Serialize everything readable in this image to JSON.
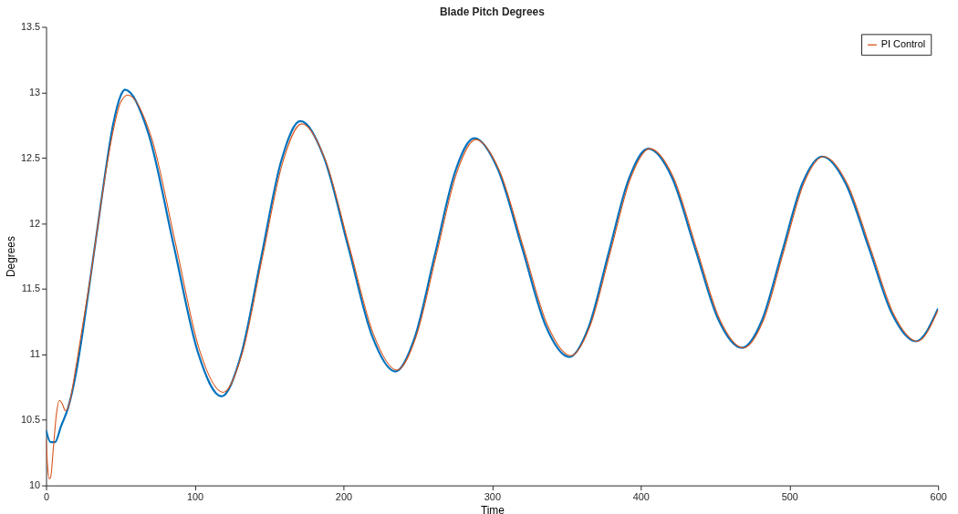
{
  "chart_data": {
    "type": "line",
    "title": "Blade Pitch Degrees",
    "xlabel": "Time",
    "ylabel": "Degrees",
    "xlim": [
      0,
      600
    ],
    "xticks": [
      0,
      100,
      200,
      300,
      400,
      500,
      600
    ],
    "ylim": [
      10,
      13.5
    ],
    "yticks": [
      10,
      10.5,
      11,
      11.5,
      12,
      12.5,
      13,
      13.5
    ],
    "grid": false,
    "legend": "top right",
    "line_style": "solid",
    "marker": "none",
    "series": [
      {
        "color": "#0072bd",
        "x": [
          0,
          3,
          6,
          10,
          15,
          20,
          25,
          30,
          35,
          40,
          45,
          50,
          53,
          69,
          85.5,
          102,
          118,
          131,
          144.5,
          158,
          171,
          187,
          203,
          219,
          235,
          248,
          261.5,
          275,
          288,
          304,
          320,
          336,
          352,
          365,
          378.5,
          392,
          405,
          421,
          436.5,
          452,
          468,
          481.5,
          495,
          508.5,
          522,
          538,
          553.5,
          569,
          585,
          600
        ],
        "values": [
          10.42,
          10.33,
          10.33,
          10.45,
          10.6,
          10.85,
          11.2,
          11.6,
          12.0,
          12.4,
          12.75,
          12.97,
          13.02,
          12.68,
          11.85,
          11.02,
          10.68,
          10.99,
          11.73,
          12.47,
          12.78,
          12.5,
          11.83,
          11.15,
          10.87,
          11.13,
          11.76,
          12.39,
          12.65,
          12.41,
          11.82,
          11.22,
          10.98,
          11.21,
          11.78,
          12.34,
          12.57,
          12.35,
          11.81,
          11.27,
          11.05,
          11.26,
          11.78,
          12.3,
          12.51,
          12.3,
          11.81,
          11.31,
          11.1,
          11.35
        ]
      },
      {
        "name": "PI Control",
        "color": "#d95319",
        "x": [
          0,
          1,
          2,
          3,
          5,
          7,
          9,
          11,
          13,
          15,
          20,
          25,
          30,
          35,
          40,
          45,
          50,
          55,
          71,
          87,
          103,
          119,
          132,
          145.5,
          159,
          172,
          188,
          204,
          220,
          236,
          249,
          262.5,
          276,
          289,
          305,
          321,
          337,
          353,
          366,
          379.5,
          393,
          406,
          422,
          437.5,
          453,
          469,
          482.5,
          496,
          509.5,
          523,
          539,
          554.5,
          570,
          586,
          600
        ],
        "values": [
          10.35,
          10.15,
          10.05,
          10.06,
          10.3,
          10.55,
          10.65,
          10.62,
          10.57,
          10.6,
          10.9,
          11.25,
          11.6,
          12.0,
          12.38,
          12.7,
          12.92,
          12.98,
          12.65,
          11.85,
          11.04,
          10.71,
          11.01,
          11.74,
          12.46,
          12.76,
          12.48,
          11.82,
          11.16,
          10.88,
          11.14,
          11.76,
          12.38,
          12.64,
          12.4,
          11.82,
          11.23,
          10.99,
          11.22,
          11.78,
          12.34,
          12.57,
          12.35,
          11.81,
          11.27,
          11.05,
          11.26,
          11.78,
          12.3,
          12.51,
          12.3,
          11.81,
          11.31,
          11.1,
          11.34
        ]
      }
    ]
  }
}
